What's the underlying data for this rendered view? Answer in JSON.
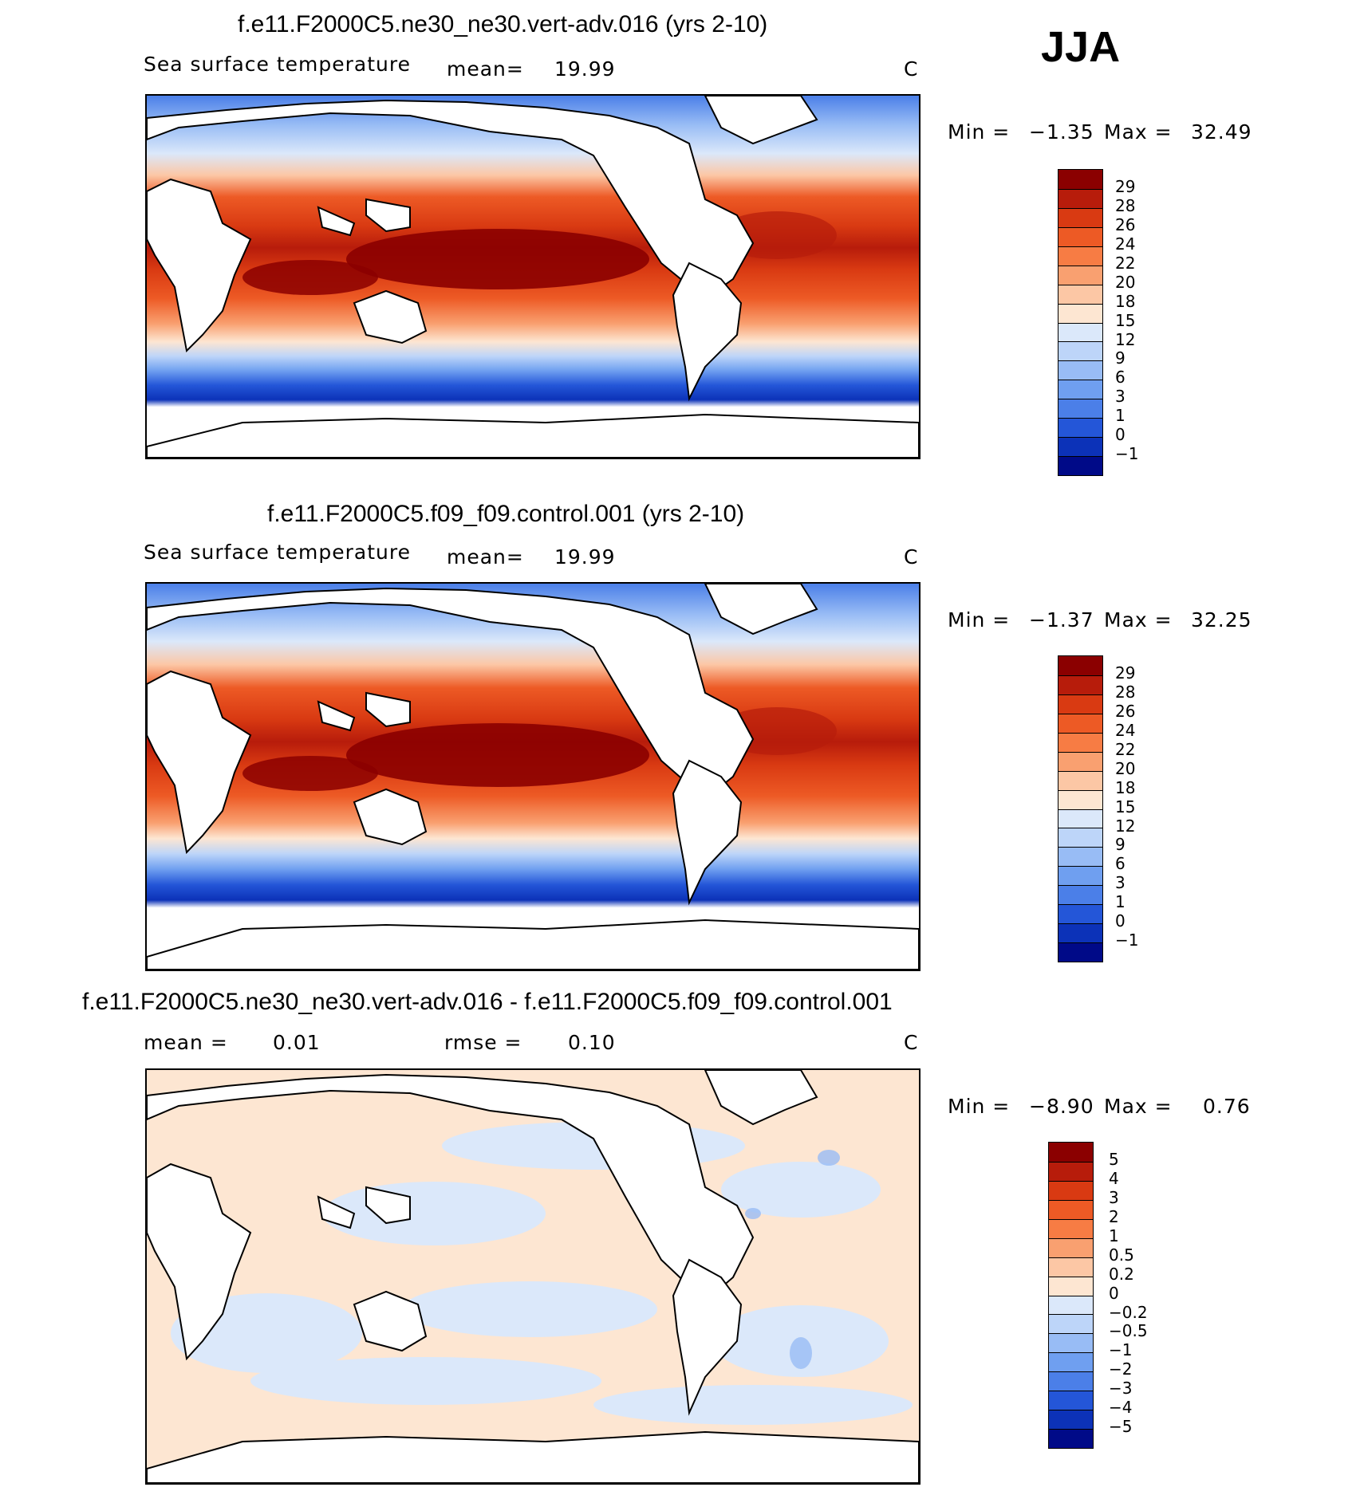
{
  "season": "JJA",
  "panels": [
    {
      "title": "f.e11.F2000C5.ne30_ne30.vert-adv.016 (yrs 2-10)",
      "left_label": "Sea surface temperature",
      "mean_label": "mean=",
      "mean_value": "19.99",
      "units": "C",
      "min_label": "Min =",
      "min_value": "−1.35",
      "max_label": "Max =",
      "max_value": "32.49",
      "colorbar": {
        "labels": [
          "29",
          "28",
          "26",
          "24",
          "22",
          "20",
          "18",
          "15",
          "12",
          "9",
          "6",
          "3",
          "1",
          "0",
          "−1"
        ],
        "colors": [
          "#8b0000",
          "#b71c0b",
          "#d93a12",
          "#ed5a25",
          "#f77c44",
          "#f9a070",
          "#fcc7a5",
          "#fde6d2",
          "#dbe8fa",
          "#bdd5f9",
          "#98bcf5",
          "#6f9ff0",
          "#4b7fe8",
          "#2456d8",
          "#0c32b8",
          "#000a88"
        ]
      }
    },
    {
      "title": "f.e11.F2000C5.f09_f09.control.001 (yrs 2-10)",
      "left_label": "Sea surface temperature",
      "mean_label": "mean=",
      "mean_value": "19.99",
      "units": "C",
      "min_label": "Min =",
      "min_value": "−1.37",
      "max_label": "Max =",
      "max_value": "32.25",
      "colorbar": {
        "labels": [
          "29",
          "28",
          "26",
          "24",
          "22",
          "20",
          "18",
          "15",
          "12",
          "9",
          "6",
          "3",
          "1",
          "0",
          "−1"
        ],
        "colors": [
          "#8b0000",
          "#b71c0b",
          "#d93a12",
          "#ed5a25",
          "#f77c44",
          "#f9a070",
          "#fcc7a5",
          "#fde6d2",
          "#dbe8fa",
          "#bdd5f9",
          "#98bcf5",
          "#6f9ff0",
          "#4b7fe8",
          "#2456d8",
          "#0c32b8",
          "#000a88"
        ]
      }
    },
    {
      "title": "f.e11.F2000C5.ne30_ne30.vert-adv.016 - f.e11.F2000C5.f09_f09.control.001",
      "left_label": "mean =",
      "left_value": "0.01",
      "rmse_label": "rmse =",
      "rmse_value": "0.10",
      "units": "C",
      "min_label": "Min =",
      "min_value": "−8.90",
      "max_label": "Max =",
      "max_value": "0.76",
      "colorbar": {
        "labels": [
          "5",
          "4",
          "3",
          "2",
          "1",
          "0.5",
          "0.2",
          "0",
          "−0.2",
          "−0.5",
          "−1",
          "−2",
          "−3",
          "−4",
          "−5"
        ],
        "colors": [
          "#8b0000",
          "#b71c0b",
          "#d93a12",
          "#ed5a25",
          "#f77c44",
          "#f9a070",
          "#fcc7a5",
          "#fde6d2",
          "#dbe8fa",
          "#bdd5f9",
          "#98bcf5",
          "#6f9ff0",
          "#4b7fe8",
          "#2456d8",
          "#0c32b8",
          "#000a88"
        ]
      }
    }
  ],
  "chart_data": [
    {
      "type": "heatmap",
      "title": "f.e11.F2000C5.ne30_ne30.vert-adv.016 (yrs 2-10)",
      "subtitle": "Sea surface temperature",
      "season": "JJA",
      "mean": 19.99,
      "min": -1.35,
      "max": 32.49,
      "units": "C",
      "levels": [
        -1,
        0,
        1,
        3,
        6,
        9,
        12,
        15,
        18,
        20,
        22,
        24,
        26,
        28,
        29
      ]
    },
    {
      "type": "heatmap",
      "title": "f.e11.F2000C5.f09_f09.control.001 (yrs 2-10)",
      "subtitle": "Sea surface temperature",
      "season": "JJA",
      "mean": 19.99,
      "min": -1.37,
      "max": 32.25,
      "units": "C",
      "levels": [
        -1,
        0,
        1,
        3,
        6,
        9,
        12,
        15,
        18,
        20,
        22,
        24,
        26,
        28,
        29
      ]
    },
    {
      "type": "heatmap",
      "title": "f.e11.F2000C5.ne30_ne30.vert-adv.016 - f.e11.F2000C5.f09_f09.control.001",
      "season": "JJA",
      "mean": 0.01,
      "rmse": 0.1,
      "min": -8.9,
      "max": 0.76,
      "units": "C",
      "levels": [
        -5,
        -4,
        -3,
        -2,
        -1,
        -0.5,
        -0.2,
        0,
        0.2,
        0.5,
        1,
        2,
        3,
        4,
        5
      ]
    }
  ]
}
